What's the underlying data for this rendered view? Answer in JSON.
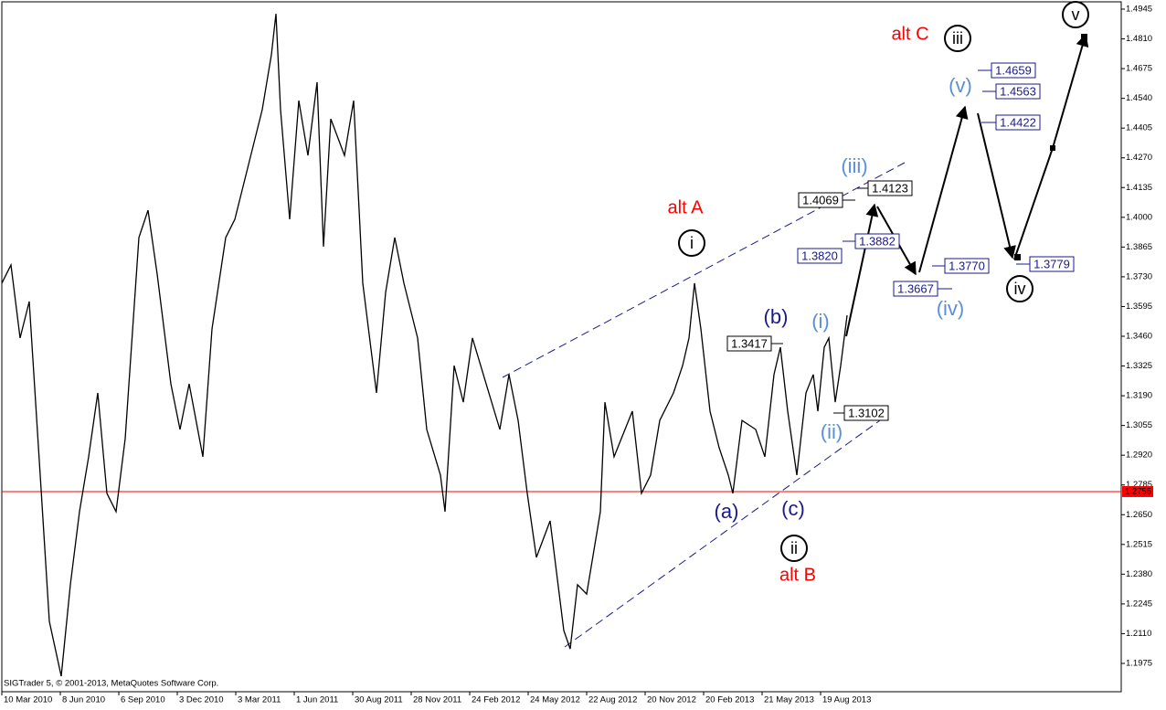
{
  "chart_data": {
    "type": "line",
    "x": [
      0,
      10,
      20,
      30,
      42,
      52,
      65,
      75,
      85,
      95,
      105,
      115,
      125,
      135,
      150,
      160,
      170,
      185,
      195,
      205,
      220,
      230,
      245,
      255,
      270,
      285,
      295,
      300,
      305,
      315,
      325,
      335,
      345,
      352,
      360,
      375,
      385,
      395,
      410,
      420,
      430,
      440,
      455,
      465,
      480,
      485,
      495,
      505,
      515,
      530,
      545,
      555,
      565,
      575,
      585,
      600,
      615,
      622,
      630,
      640,
      655,
      660,
      670,
      690,
      700,
      710,
      720,
      735,
      745,
      752,
      758,
      765,
      775,
      785,
      795,
      800,
      810,
      825,
      835,
      845,
      852,
      860,
      870,
      880,
      888,
      893,
      900,
      905,
      912,
      918,
      925
    ],
    "series": [
      {
        "color": "#000000",
        "values": [
          1.3701,
          1.3784,
          1.3452,
          1.3618,
          1.283,
          1.2166,
          1.1917,
          1.2332,
          1.2664,
          1.2913,
          1.3203,
          1.2747,
          1.2664,
          1.2995,
          1.3908,
          1.4032,
          1.3742,
          1.3244,
          1.3037,
          1.3244,
          1.2913,
          1.3493,
          1.3908,
          1.3991,
          1.424,
          1.4489,
          1.4738,
          1.4924,
          1.4489,
          1.3991,
          1.453,
          1.4281,
          1.4613,
          1.3867,
          1.4447,
          1.4281,
          1.453,
          1.3701,
          1.3203,
          1.3659,
          1.3908,
          1.3701,
          1.3452,
          1.3037,
          1.283,
          1.2664,
          1.3327,
          1.3161,
          1.3452,
          1.3244,
          1.3037,
          1.3286,
          1.3078,
          1.2747,
          1.2456,
          1.2622,
          1.2124,
          1.2041,
          1.2332,
          1.229,
          1.2664,
          1.3161,
          1.2913,
          1.312,
          1.2747,
          1.283,
          1.3078,
          1.3203,
          1.3327,
          1.3452,
          1.3701,
          1.3493,
          1.312,
          1.2954,
          1.283,
          1.2747,
          1.3078,
          1.3037,
          1.2913,
          1.3286,
          1.341,
          1.312,
          1.283,
          1.3203,
          1.3286,
          1.312,
          1.341,
          1.3452,
          1.3161,
          1.3327,
          1.3555
        ]
      }
    ],
    "xlim": [
      0,
      1225
    ],
    "ylim": [
      1.18464,
      1.49782
    ],
    "xticks": [
      {
        "value": 0,
        "label": "10 Mar 2010"
      },
      {
        "value": 64,
        "label": "8 Jun 2010"
      },
      {
        "value": 128,
        "label": "6 Sep 2010"
      },
      {
        "value": 192,
        "label": "3 Dec 2010"
      },
      {
        "value": 256,
        "label": "3 Mar 2011"
      },
      {
        "value": 320,
        "label": "1 Jun 2011"
      },
      {
        "value": 384,
        "label": "30 Aug 2011"
      },
      {
        "value": 448,
        "label": "28 Nov 2011"
      },
      {
        "value": 512,
        "label": "24 Feb 2012"
      },
      {
        "value": 576,
        "label": "24 May 2012"
      },
      {
        "value": 640,
        "label": "22 Aug 2012"
      },
      {
        "value": 704,
        "label": "20 Nov 2012"
      },
      {
        "value": 768,
        "label": "20 Feb 2013"
      },
      {
        "value": 832,
        "label": "21 May 2013"
      },
      {
        "value": 896,
        "label": "19 Aug 2013"
      }
    ],
    "yticks": [
      1.1975,
      {
        "value": 1.211,
        "label": "1.2110"
      },
      1.2245,
      {
        "value": 1.238,
        "label": "1.2380"
      },
      1.2515,
      {
        "value": 1.265,
        "label": "1.2650"
      },
      1.2785,
      {
        "value": 1.292,
        "label": "1.2920"
      },
      1.3055,
      {
        "value": 1.319,
        "label": "1.3190"
      },
      1.3325,
      {
        "value": 1.346,
        "label": "1.3460"
      },
      1.3595,
      {
        "value": 1.373,
        "label": "1.3730"
      },
      1.3865,
      {
        "value": 1.4,
        "label": "1.4000"
      },
      1.4135,
      {
        "value": 1.427,
        "label": "1.4270"
      },
      1.4405,
      {
        "value": 1.454,
        "label": "1.4540"
      },
      1.4675,
      {
        "value": 1.481,
        "label": "1.4810"
      },
      1.4945
    ],
    "hlines": [
      {
        "value": 1.2755,
        "label": "1.2755",
        "color": "#ff0000"
      }
    ],
    "annotations": [
      {
        "text": "alt A",
        "style": "text",
        "color": "#ff0000"
      },
      {
        "text": "alt B",
        "style": "text",
        "color": "#ff0000"
      },
      {
        "text": "alt C",
        "style": "text",
        "color": "#ff0000"
      },
      {
        "text": "i",
        "style": "circle",
        "color": "#000000"
      },
      {
        "text": "ii",
        "style": "circle",
        "color": "#000000"
      },
      {
        "text": "iii",
        "style": "circle",
        "color": "#000000"
      },
      {
        "text": "iv",
        "style": "circle",
        "color": "#000000"
      },
      {
        "text": "v",
        "style": "circle",
        "color": "#000000"
      },
      {
        "text": "(a)",
        "style": "text",
        "color": "#1a1a8c"
      },
      {
        "text": "(b)",
        "style": "text",
        "color": "#1a1a8c"
      },
      {
        "text": "(c)",
        "style": "text",
        "color": "#1a1a8c"
      },
      {
        "text": "(i)",
        "style": "text",
        "color": "#5b8fd6"
      },
      {
        "text": "(ii)",
        "style": "text",
        "color": "#5b8fd6"
      },
      {
        "text": "(iii)",
        "style": "text",
        "color": "#5b8fd6"
      },
      {
        "text": "(iv)",
        "style": "text",
        "color": "#5b8fd6"
      },
      {
        "text": "(v)",
        "style": "text",
        "color": "#5b8fd6"
      },
      {
        "text": "1.3417",
        "style": "box",
        "color": "#000000"
      },
      {
        "text": "1.3102",
        "style": "box",
        "color": "#000000"
      },
      {
        "text": "1.4069",
        "style": "box",
        "color": "#000000"
      },
      {
        "text": "1.4123",
        "style": "box",
        "color": "#000000"
      },
      {
        "text": "1.3820",
        "style": "box",
        "color": "#1a1a8c"
      },
      {
        "text": "1.3882",
        "style": "box",
        "color": "#1a1a8c"
      },
      {
        "text": "1.3667",
        "style": "box",
        "color": "#1a1a8c"
      },
      {
        "text": "1.3770",
        "style": "box",
        "color": "#1a1a8c"
      },
      {
        "text": "1.4659",
        "style": "box",
        "color": "#1a1a8c"
      },
      {
        "text": "1.4563",
        "style": "box",
        "color": "#1a1a8c"
      },
      {
        "text": "1.4422",
        "style": "box",
        "color": "#1a1a8c"
      },
      {
        "text": "1.3779",
        "style": "box",
        "color": "#1a1a8c"
      }
    ],
    "watermark": "SIGTrader 5, © 2001-2013, MetaQuotes Software Corp."
  }
}
